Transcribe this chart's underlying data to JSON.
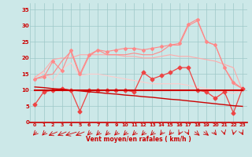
{
  "x": [
    0,
    1,
    2,
    3,
    4,
    5,
    6,
    7,
    8,
    9,
    10,
    11,
    12,
    13,
    14,
    15,
    16,
    17,
    18,
    19,
    20,
    21,
    22,
    23
  ],
  "line_zigzag_dark": [
    5.5,
    9.5,
    10,
    10.5,
    10,
    3.5,
    10,
    10,
    10,
    10,
    10,
    9.5,
    15.5,
    13.5,
    14.5,
    15.5,
    17,
    17,
    10,
    9.5,
    7.5,
    9.5,
    3,
    10.5
  ],
  "line_peak_light": [
    13.5,
    14,
    19,
    16,
    22.5,
    15,
    21,
    22.5,
    22,
    22.5,
    23,
    23,
    22.5,
    23,
    23.5,
    24,
    24.5,
    30.5,
    32,
    25,
    24,
    17,
    12.5,
    10.5
  ],
  "line_smooth_med": [
    14,
    16,
    19.5,
    20,
    20,
    21,
    21,
    21,
    21,
    21,
    20.5,
    20.5,
    20,
    20,
    20.5,
    21,
    20.5,
    20.5,
    20,
    19.5,
    19,
    18,
    17,
    10
  ],
  "line_peak2": [
    13.5,
    14.5,
    15,
    19,
    22,
    14.5,
    20.5,
    22.5,
    21,
    21,
    21,
    21.5,
    21,
    21,
    22,
    24,
    24,
    30,
    31.5,
    25,
    24,
    17,
    12,
    10.5
  ],
  "line_smooth_light": [
    14,
    15.5,
    13,
    16.5,
    18.5,
    14.5,
    15,
    15,
    14.5,
    14,
    13.5,
    13,
    12.5,
    12,
    12,
    12,
    12,
    11.5,
    11,
    10.5,
    10,
    9.5,
    9,
    10
  ],
  "line_descent": [
    11,
    10.8,
    10.5,
    10.3,
    10.0,
    9.8,
    9.5,
    9.3,
    9.0,
    8.8,
    8.5,
    8.3,
    8.0,
    7.8,
    7.5,
    7.2,
    7.0,
    6.7,
    6.4,
    6.1,
    5.8,
    5.5,
    5.2,
    5.0
  ],
  "line_flat_dark": [
    10,
    10,
    10,
    10,
    10,
    10,
    10,
    10,
    10,
    10,
    10,
    10,
    10,
    10,
    10,
    10,
    10,
    10,
    10,
    10,
    10,
    10,
    10,
    10
  ],
  "arrows_angle": [
    200,
    200,
    220,
    220,
    230,
    220,
    200,
    200,
    200,
    200,
    200,
    200,
    200,
    200,
    195,
    195,
    190,
    170,
    155,
    155,
    165,
    175,
    185,
    170
  ],
  "bg_color": "#cce8e8",
  "grid_color": "#9dc8c8",
  "color_dark_red": "#cc0000",
  "color_med_red": "#ee4444",
  "color_light_red1": "#ff8888",
  "color_light_red2": "#ffaaaa",
  "color_light_red3": "#ffcccc",
  "xlabel": "Vent moyen/en rafales ( km/h )",
  "ylabel_ticks": [
    0,
    5,
    10,
    15,
    20,
    25,
    30,
    35
  ],
  "xlim": [
    -0.5,
    23.5
  ],
  "ylim": [
    0,
    37
  ]
}
